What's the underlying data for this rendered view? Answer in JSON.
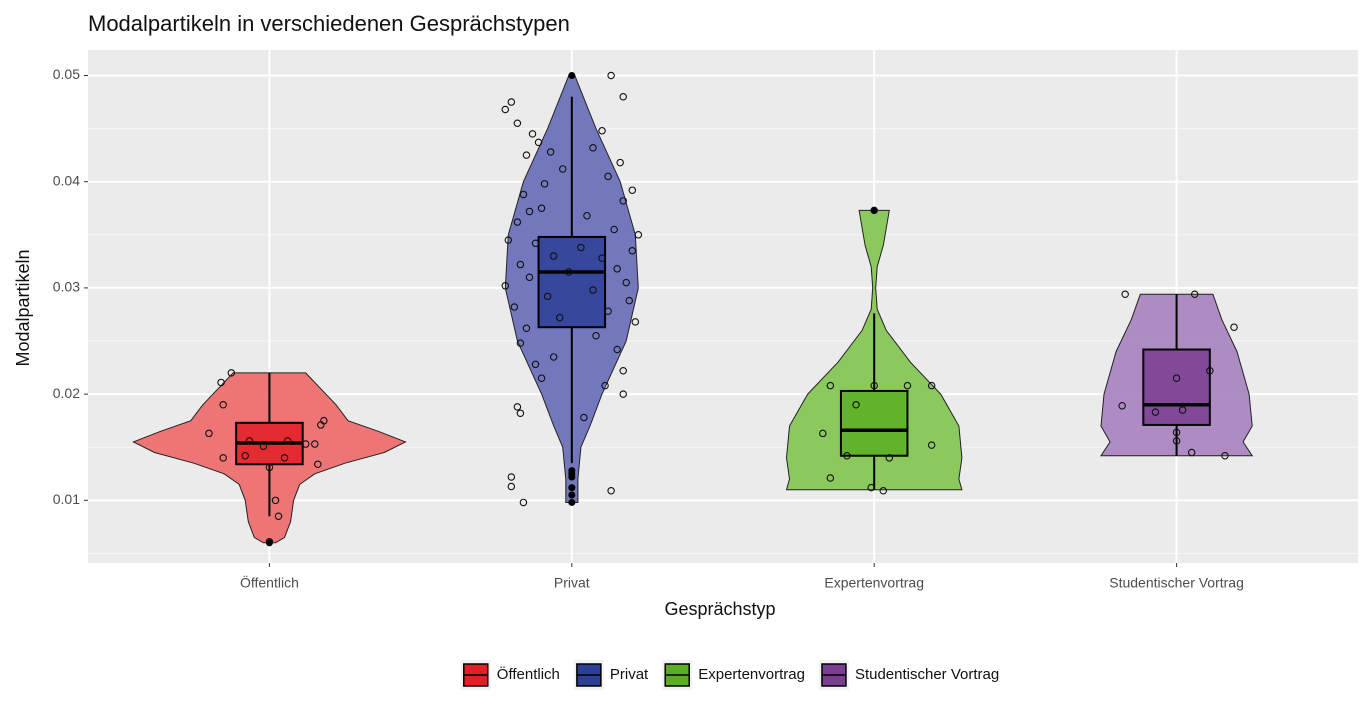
{
  "chart_data": {
    "type": "violin",
    "title": "Modalpartikeln in verschiedenen Gesprächstypen",
    "xlabel": "Gesprächstyp",
    "ylabel": "Modalpartikeln",
    "categories": [
      "Öffentlich",
      "Privat",
      "Expertenvortrag",
      "Studentischer Vortrag"
    ],
    "xlim": [
      0.4,
      4.6
    ],
    "ylim": [
      0.0041,
      0.0524
    ],
    "yticks": [
      0.01,
      0.02,
      0.03,
      0.04,
      0.05
    ],
    "grid": true,
    "legend": "bottom",
    "series": [
      {
        "name": "Öffentlich",
        "color": "#e21f26",
        "violin_color": "#ee6f6f",
        "violin_y": [
          0.006,
          0.0065,
          0.008,
          0.01,
          0.0115,
          0.0125,
          0.0135,
          0.0145,
          0.0155,
          0.0165,
          0.0175,
          0.019,
          0.0205,
          0.022
        ],
        "violin_w": [
          0.02,
          0.05,
          0.07,
          0.08,
          0.1,
          0.15,
          0.25,
          0.38,
          0.45,
          0.36,
          0.26,
          0.22,
          0.17,
          0.12
        ],
        "box": {
          "min": 0.0085,
          "q1": 0.0134,
          "median": 0.0154,
          "q3": 0.0173,
          "max": 0.022
        },
        "outliers": [
          0.006
        ],
        "jitter_x": [
          0.874,
          0.84,
          0.847,
          0.8,
          0.847,
          0.934,
          0.98,
          1.0,
          1.02,
          1.03,
          1.0,
          1.05,
          1.12,
          1.15,
          1.16,
          1.17,
          1.18,
          0.92,
          1.06
        ],
        "jitter_y": [
          0.022,
          0.0211,
          0.019,
          0.0163,
          0.014,
          0.0156,
          0.0151,
          0.0131,
          0.01,
          0.0085,
          0.0061,
          0.014,
          0.0153,
          0.0153,
          0.0134,
          0.0171,
          0.0175,
          0.0142,
          0.0156
        ]
      },
      {
        "name": "Privat",
        "color": "#2c3e96",
        "violin_color": "#6d72b9",
        "violin_y": [
          0.0098,
          0.012,
          0.015,
          0.017,
          0.02,
          0.025,
          0.03,
          0.035,
          0.04,
          0.045,
          0.05
        ],
        "violin_w": [
          0.02,
          0.02,
          0.03,
          0.06,
          0.1,
          0.18,
          0.22,
          0.21,
          0.16,
          0.08,
          0.01
        ],
        "box": {
          "min": 0.0135,
          "q1": 0.0263,
          "median": 0.0315,
          "q3": 0.0348,
          "max": 0.048
        },
        "outliers": [
          0.05,
          0.0128,
          0.0125,
          0.0122,
          0.0112,
          0.0105,
          0.0098
        ],
        "jitter_x": [
          2.13,
          1.8,
          1.78,
          1.82,
          2.1,
          1.87,
          1.89,
          2.07,
          1.93,
          1.85,
          2.16,
          1.97,
          2.12,
          1.91,
          2.2,
          1.84,
          2.17,
          1.9,
          1.86,
          2.05,
          1.82,
          2.14,
          2.22,
          1.79,
          1.88,
          2.03,
          2.2,
          1.94,
          2.1,
          1.83,
          2.15,
          1.99,
          1.86,
          2.18,
          1.78,
          2.07,
          1.92,
          2.19,
          1.81,
          2.12,
          1.96,
          2.21,
          1.85,
          2.08,
          1.83,
          2.15,
          1.94,
          1.88,
          2.17,
          1.9,
          2.11,
          2.17,
          1.82,
          1.83,
          2.04,
          1.8,
          1.8,
          2.13,
          1.84,
          2.17
        ],
        "jitter_y": [
          0.05,
          0.0475,
          0.0468,
          0.0455,
          0.0448,
          0.0445,
          0.0437,
          0.0432,
          0.0428,
          0.0425,
          0.0418,
          0.0412,
          0.0405,
          0.0398,
          0.0392,
          0.0388,
          0.0382,
          0.0375,
          0.0372,
          0.0368,
          0.0362,
          0.0355,
          0.035,
          0.0345,
          0.0342,
          0.0338,
          0.0335,
          0.033,
          0.0328,
          0.0322,
          0.0318,
          0.0315,
          0.031,
          0.0305,
          0.0302,
          0.0298,
          0.0292,
          0.0288,
          0.0282,
          0.0278,
          0.0272,
          0.0268,
          0.0262,
          0.0255,
          0.0248,
          0.0242,
          0.0235,
          0.0228,
          0.0222,
          0.0215,
          0.0208,
          0.02,
          0.0188,
          0.0182,
          0.0178,
          0.0122,
          0.0113,
          0.0109,
          0.0098,
          0.048
        ]
      },
      {
        "name": "Expertenvortrag",
        "color": "#5aae22",
        "violin_color": "#86c655",
        "violin_y": [
          0.011,
          0.012,
          0.014,
          0.017,
          0.02,
          0.023,
          0.026,
          0.028,
          0.03,
          0.032,
          0.034,
          0.0373
        ],
        "violin_w": [
          0.29,
          0.28,
          0.29,
          0.28,
          0.22,
          0.12,
          0.04,
          0.01,
          0.005,
          0.01,
          0.03,
          0.05
        ],
        "box": {
          "min": 0.011,
          "q1": 0.0142,
          "median": 0.0166,
          "q3": 0.0203,
          "max": 0.0276
        },
        "outliers": [
          0.0373
        ],
        "jitter_x": [
          2.855,
          3.0,
          3.11,
          3.19,
          2.83,
          2.91,
          3.05,
          3.19,
          2.855,
          2.99,
          3.03,
          3.0,
          2.94
        ],
        "jitter_y": [
          0.0208,
          0.0208,
          0.0208,
          0.0208,
          0.0163,
          0.0142,
          0.014,
          0.0152,
          0.0121,
          0.0112,
          0.0109,
          0.0373,
          0.019
        ]
      },
      {
        "name": "Studentischer Vortrag",
        "color": "#7a3d92",
        "violin_color": "#ac86c2",
        "violin_y": [
          0.0142,
          0.0155,
          0.017,
          0.02,
          0.024,
          0.027,
          0.0294
        ],
        "violin_w": [
          0.25,
          0.22,
          0.25,
          0.24,
          0.2,
          0.15,
          0.12
        ],
        "box": {
          "min": 0.0142,
          "q1": 0.0171,
          "median": 0.019,
          "q3": 0.0242,
          "max": 0.0294
        },
        "outliers": [],
        "jitter_x": [
          3.83,
          4.06,
          4.19,
          3.82,
          4.0,
          4.02,
          3.93,
          4.11,
          4.0,
          4.05,
          4.16,
          4.0
        ],
        "jitter_y": [
          0.0294,
          0.0294,
          0.0263,
          0.0189,
          0.0215,
          0.0185,
          0.0183,
          0.0222,
          0.0164,
          0.0145,
          0.0142,
          0.0156
        ]
      }
    ]
  }
}
